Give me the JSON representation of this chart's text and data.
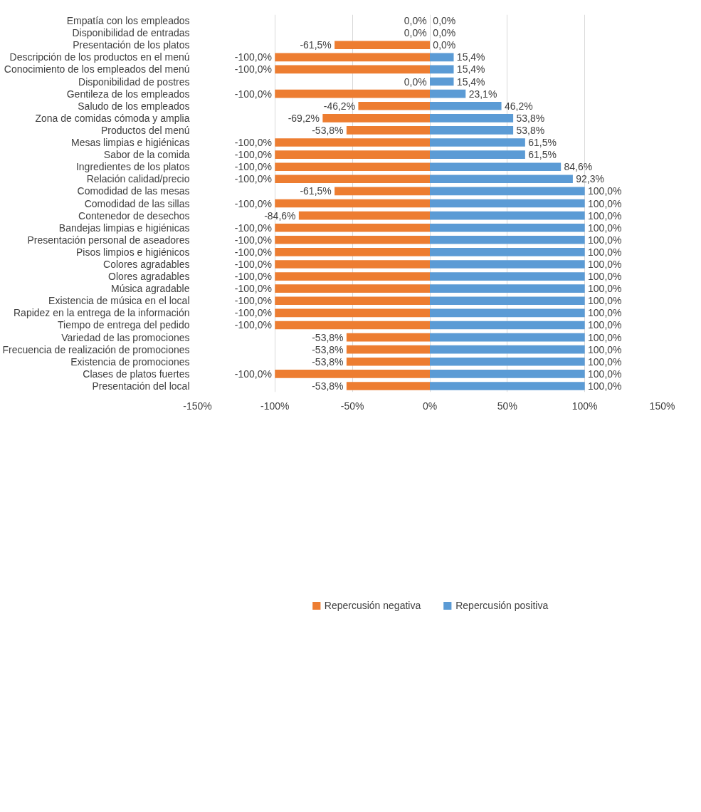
{
  "chart_data": {
    "type": "bar",
    "orientation": "horizontal",
    "stacked": true,
    "categories": [
      "Empatía con los empleados",
      "Disponibilidad de entradas",
      "Presentación de los platos",
      "Descripción de los productos en el menú",
      "Conocimiento de los empleados del menú",
      "Disponibilidad de postres",
      "Gentileza de los empleados",
      "Saludo de los empleados",
      "Zona de comidas cómoda y amplia",
      "Productos del menú",
      "Mesas limpias e higiénicas",
      "Sabor de la comida",
      "Ingredientes de los platos",
      "Relación calidad/precio",
      "Comodidad de las mesas",
      "Comodidad de las sillas",
      "Contenedor de desechos",
      "Bandejas limpias e higiénicas",
      "Presentación personal de aseadores",
      "Pisos limpios e higiénicos",
      "Colores agradables",
      "Olores agradables",
      "Música agradable",
      "Existencia de música en el local",
      "Rapidez en la entrega de la información",
      "Tiempo de entrega del pedido",
      "Variedad de las promociones",
      "Frecuencia de realización de promociones",
      "Existencia de promociones",
      "Clases de platos fuertes",
      "Presentación del local"
    ],
    "series": [
      {
        "name": "Repercusión negativa",
        "color": "#ed7d31",
        "values": [
          0,
          0,
          -61.5,
          -100,
          -100,
          0,
          -100,
          -46.2,
          -69.2,
          -53.8,
          -100,
          -100,
          -100,
          -100,
          -61.5,
          -100,
          -84.6,
          -100,
          -100,
          -100,
          -100,
          -100,
          -100,
          -100,
          -100,
          -100,
          -53.8,
          -53.8,
          -53.8,
          -100,
          -53.8
        ],
        "value_labels": [
          "0,0%",
          "0,0%",
          "-61,5%",
          "-100,0%",
          "-100,0%",
          "0,0%",
          "-100,0%",
          "-46,2%",
          "-69,2%",
          "-53,8%",
          "-100,0%",
          "-100,0%",
          "-100,0%",
          "-100,0%",
          "-61,5%",
          "-100,0%",
          "-84,6%",
          "-100,0%",
          "-100,0%",
          "-100,0%",
          "-100,0%",
          "-100,0%",
          "-100,0%",
          "-100,0%",
          "-100,0%",
          "-100,0%",
          "-53,8%",
          "-53,8%",
          "-53,8%",
          "-100,0%",
          "-53,8%"
        ]
      },
      {
        "name": "Repercusión positiva",
        "color": "#5b9bd5",
        "values": [
          0,
          0,
          0,
          15.4,
          15.4,
          15.4,
          23.1,
          46.2,
          53.8,
          53.8,
          61.5,
          61.5,
          84.6,
          92.3,
          100,
          100,
          100,
          100,
          100,
          100,
          100,
          100,
          100,
          100,
          100,
          100,
          100,
          100,
          100,
          100,
          100
        ],
        "value_labels": [
          "0,0%",
          "0,0%",
          "0,0%",
          "15,4%",
          "15,4%",
          "15,4%",
          "23,1%",
          "46,2%",
          "53,8%",
          "53,8%",
          "61,5%",
          "61,5%",
          "84,6%",
          "92,3%",
          "100,0%",
          "100,0%",
          "100,0%",
          "100,0%",
          "100,0%",
          "100,0%",
          "100,0%",
          "100,0%",
          "100,0%",
          "100,0%",
          "100,0%",
          "100,0%",
          "100,0%",
          "100,0%",
          "100,0%",
          "100,0%",
          "100,0%"
        ]
      }
    ],
    "xlim": [
      -150,
      150
    ],
    "xticks": [
      {
        "value": -150,
        "label": "-150%"
      },
      {
        "value": -100,
        "label": "-100%"
      },
      {
        "value": -50,
        "label": "-50%"
      },
      {
        "value": 0,
        "label": "0%"
      },
      {
        "value": 50,
        "label": "50%"
      },
      {
        "value": 100,
        "label": "100%"
      },
      {
        "value": 150,
        "label": "150%"
      }
    ],
    "grid": "x",
    "legend": "bottom"
  }
}
